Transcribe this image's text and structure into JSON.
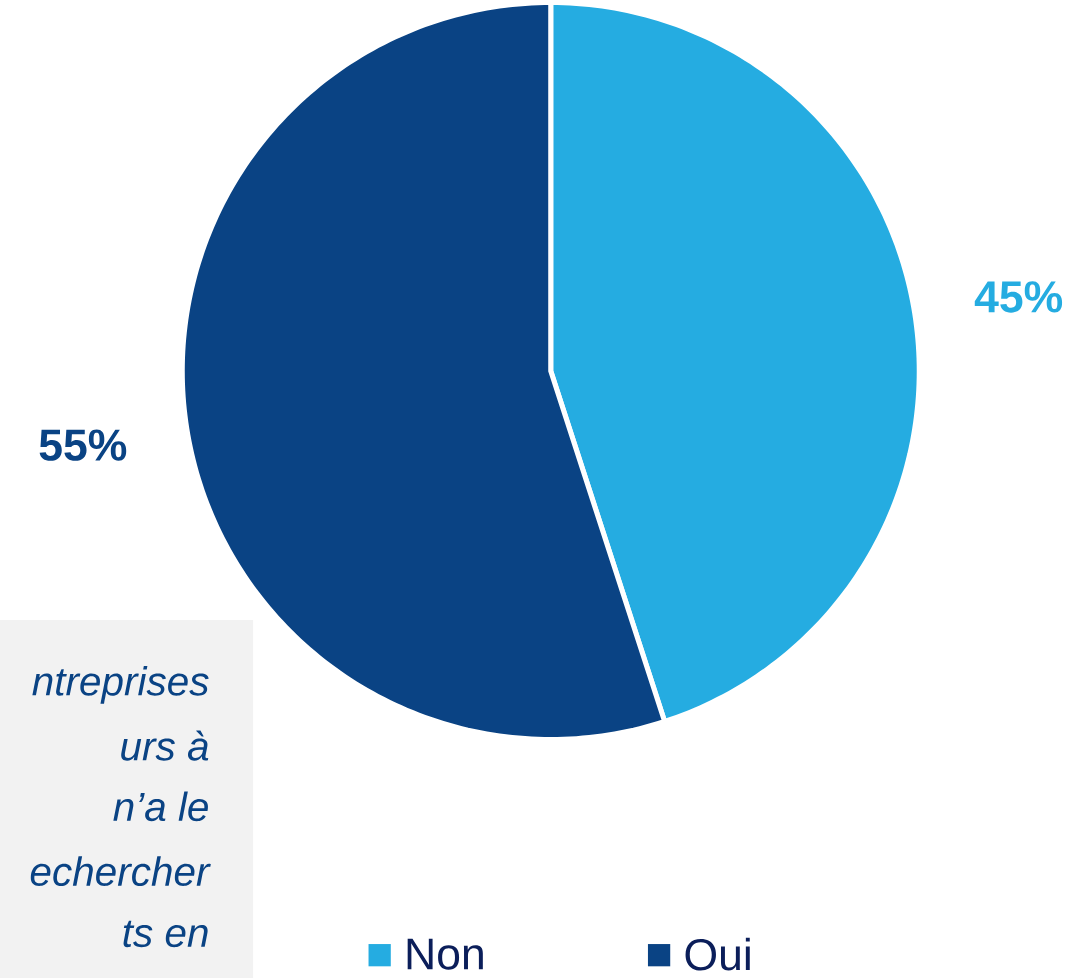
{
  "chart_data": {
    "type": "pie",
    "categories": [
      "Non",
      "Oui"
    ],
    "values": [
      45,
      55
    ],
    "colors": [
      "#25ace1",
      "#0a4384"
    ],
    "value_labels": [
      "45%",
      "55%"
    ],
    "legend": "bottom",
    "annotations": [
      "ntreprises",
      "urs à",
      "n’a le",
      "echercher",
      "ts en"
    ]
  }
}
